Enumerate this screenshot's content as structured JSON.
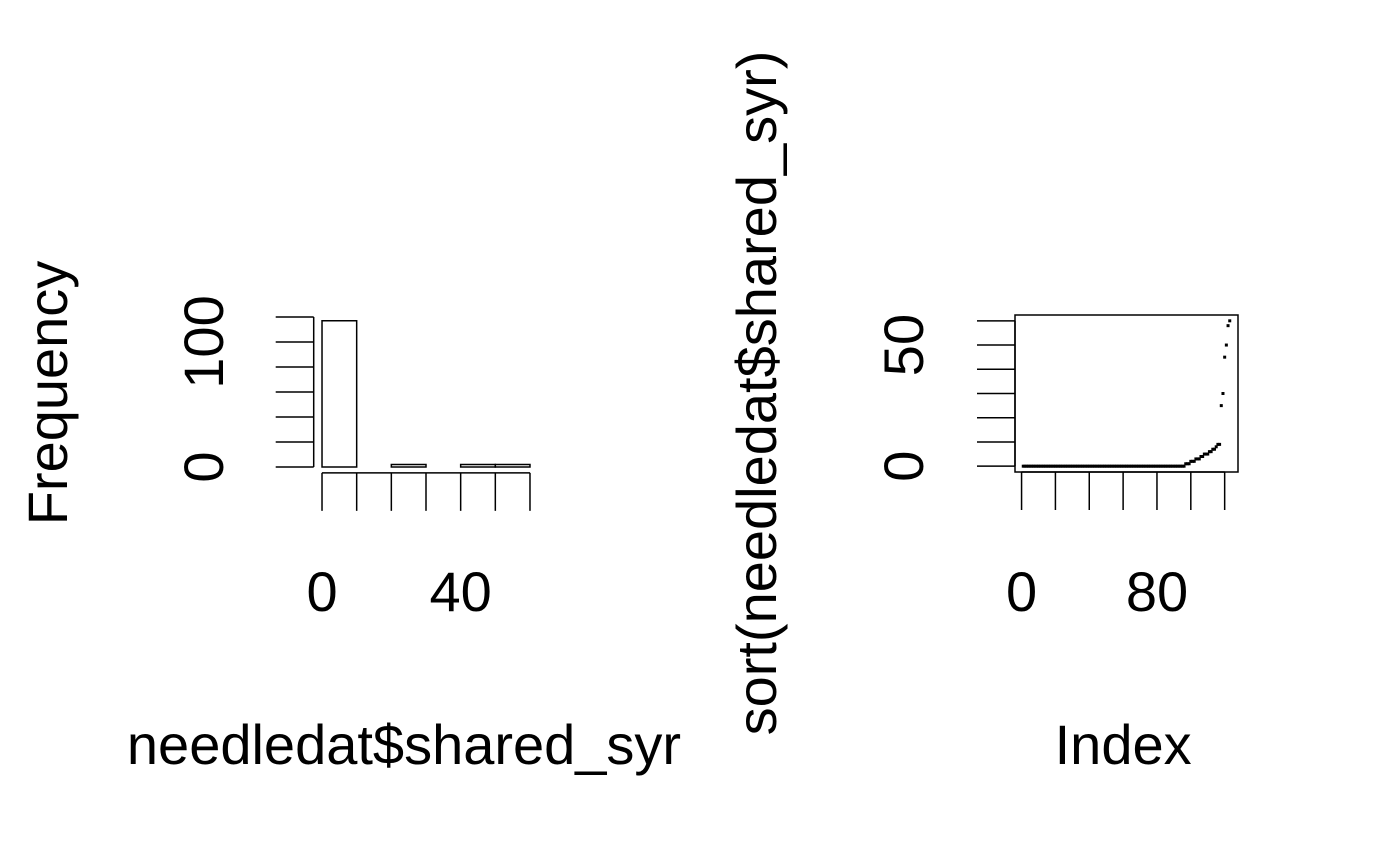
{
  "chart_data": [
    {
      "type": "histogram",
      "xlabel": "needledat$shared_syr",
      "ylabel": "Frequency",
      "bins": [
        0,
        10,
        20,
        30,
        40,
        50,
        60
      ],
      "values": [
        117,
        0,
        2,
        0,
        2,
        2
      ],
      "xlim": [
        -2.4,
        62.4
      ],
      "ylim": [
        -4.68,
        121.68
      ],
      "xticks": [
        0,
        40
      ],
      "x_minor_ticks": [
        10,
        20,
        30,
        50,
        60
      ],
      "yticks": [
        0,
        100
      ],
      "y_minor_ticks": [
        20,
        40,
        60,
        80,
        120
      ],
      "color": "#ffffff"
    },
    {
      "type": "scatter",
      "xlabel": "Index",
      "ylabel": "sort(needledat$shared_syr)",
      "x": [
        1,
        2,
        3,
        4,
        5,
        6,
        7,
        8,
        9,
        10,
        11,
        12,
        13,
        14,
        15,
        16,
        17,
        18,
        19,
        20,
        21,
        22,
        23,
        24,
        25,
        26,
        27,
        28,
        29,
        30,
        31,
        32,
        33,
        34,
        35,
        36,
        37,
        38,
        39,
        40,
        41,
        42,
        43,
        44,
        45,
        46,
        47,
        48,
        49,
        50,
        51,
        52,
        53,
        54,
        55,
        56,
        57,
        58,
        59,
        60,
        61,
        62,
        63,
        64,
        65,
        66,
        67,
        68,
        69,
        70,
        71,
        72,
        73,
        74,
        75,
        76,
        77,
        78,
        79,
        80,
        81,
        82,
        83,
        84,
        85,
        86,
        87,
        88,
        89,
        90,
        91,
        92,
        93,
        94,
        95,
        96,
        97,
        98,
        99,
        100,
        101,
        102,
        103,
        104,
        105,
        106,
        107,
        108,
        109,
        110,
        111,
        112,
        113,
        114,
        115,
        116,
        117,
        118,
        119,
        120,
        121,
        122,
        123
      ],
      "y": [
        0,
        0,
        0,
        0,
        0,
        0,
        0,
        0,
        0,
        0,
        0,
        0,
        0,
        0,
        0,
        0,
        0,
        0,
        0,
        0,
        0,
        0,
        0,
        0,
        0,
        0,
        0,
        0,
        0,
        0,
        0,
        0,
        0,
        0,
        0,
        0,
        0,
        0,
        0,
        0,
        0,
        0,
        0,
        0,
        0,
        0,
        0,
        0,
        0,
        0,
        0,
        0,
        0,
        0,
        0,
        0,
        0,
        0,
        0,
        0,
        0,
        0,
        0,
        0,
        0,
        0,
        0,
        0,
        0,
        0,
        0,
        0,
        0,
        0,
        0,
        0,
        0,
        0,
        0,
        0,
        0,
        0,
        0,
        0,
        0,
        0,
        0,
        0,
        0,
        0,
        0,
        0,
        0,
        0,
        0,
        0,
        1,
        1,
        1,
        2,
        2,
        2,
        3,
        3,
        3,
        4,
        4,
        5,
        5,
        5,
        6,
        6,
        7,
        7,
        8,
        9,
        9,
        25,
        30,
        45,
        50,
        58,
        60
      ],
      "xlim": [
        -3.88,
        127.88
      ],
      "ylim": [
        -2.4,
        62.4
      ],
      "xticks": [
        0,
        80
      ],
      "x_minor_ticks": [
        20,
        40,
        60,
        100,
        120
      ],
      "yticks": [
        0,
        50
      ],
      "y_minor_ticks": [
        10,
        20,
        30,
        40,
        60
      ],
      "frame": true,
      "color": "#000000"
    }
  ]
}
